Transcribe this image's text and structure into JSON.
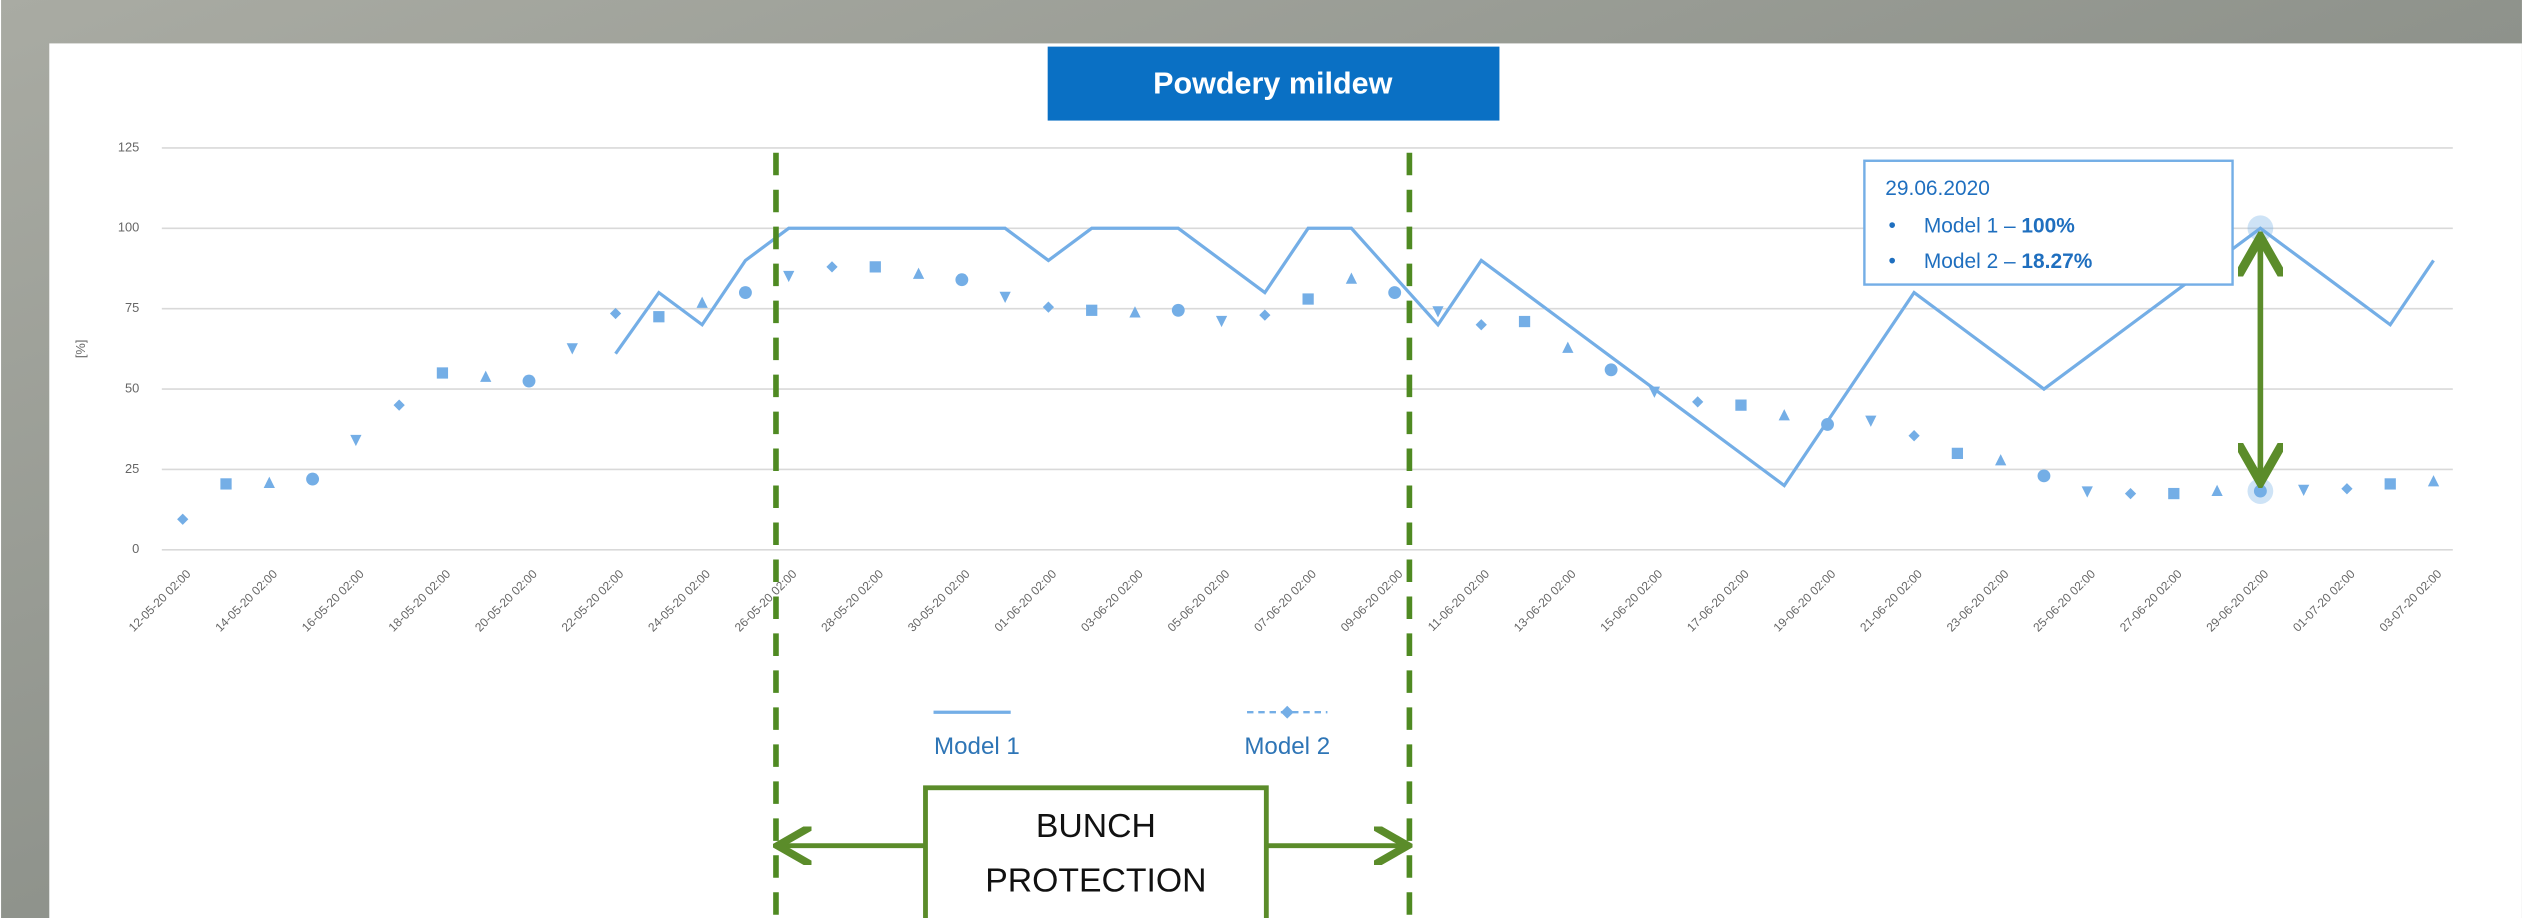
{
  "chart_data": {
    "type": "line",
    "title": "Powdery mildew",
    "y_label": "[%]",
    "categories": [
      "12-05-20 02:00",
      null,
      "14-05-20 02:00",
      null,
      "16-05-20 02:00",
      null,
      "18-05-20 02:00",
      null,
      "20-05-20 02:00",
      null,
      "22-05-20 02:00",
      null,
      "24-05-20 02:00",
      null,
      "26-05-20 02:00",
      null,
      "28-05-20 02:00",
      null,
      "30-05-20 02:00",
      null,
      "01-06-20 02:00",
      null,
      "03-06-20 02:00",
      null,
      "05-06-20 02:00",
      null,
      "07-06-20 02:00",
      null,
      "09-06-20 02:00",
      null,
      "11-06-20 02:00",
      null,
      "13-06-20 02:00",
      null,
      "15-06-20 02:00",
      null,
      "17-06-20 02:00",
      null,
      "19-06-20 02:00",
      null,
      "21-06-20 02:00",
      null,
      "23-06-20 02:00",
      null,
      "25-06-20 02:00",
      null,
      "27-06-20 02:00",
      null,
      "29-06-20 02:00",
      null,
      "01-07-20 02:00",
      null,
      "03-07-20 02:00"
    ],
    "series": [
      {
        "name": "Model 1",
        "color": "#74aee6",
        "style": "line",
        "values": [
          null,
          null,
          null,
          null,
          null,
          null,
          null,
          null,
          null,
          null,
          61,
          80,
          70,
          90,
          100,
          100,
          100,
          100,
          100,
          100,
          90,
          100,
          100,
          100,
          90,
          80,
          100,
          100,
          85,
          70,
          90,
          80,
          70,
          60,
          50,
          40,
          30,
          20,
          40,
          60,
          80,
          70,
          60,
          50,
          60,
          70,
          80,
          90,
          100,
          90,
          80,
          70,
          90
        ]
      },
      {
        "name": "Model 2",
        "color": "#74aee6",
        "style": "markers",
        "values": [
          9.5,
          20.5,
          21,
          22,
          34,
          45,
          55,
          54,
          52.5,
          62.5,
          73.5,
          72.5,
          77,
          80,
          85,
          88,
          88,
          86,
          84,
          78.5,
          75.5,
          74.5,
          74,
          74.5,
          71,
          73,
          78,
          84.5,
          80,
          74,
          70,
          71,
          63,
          56,
          49,
          46,
          45,
          42,
          39,
          40,
          35.5,
          30,
          28,
          23,
          18,
          17.5,
          17.5,
          18.5,
          18.27,
          18.5,
          19,
          20.5,
          21.5
        ]
      }
    ],
    "ylim": [
      0,
      125
    ],
    "yticks": [
      0,
      25,
      50,
      75,
      100,
      125
    ],
    "grid": true,
    "tooltip": {
      "title": "29.06.2020",
      "items": [
        {
          "label": "Model 1 –",
          "value": "100%"
        },
        {
          "label": "Model 2 –",
          "value": "18.27%"
        }
      ]
    },
    "annotation": {
      "line1": "BUNCH",
      "line2": "PROTECTION"
    }
  }
}
